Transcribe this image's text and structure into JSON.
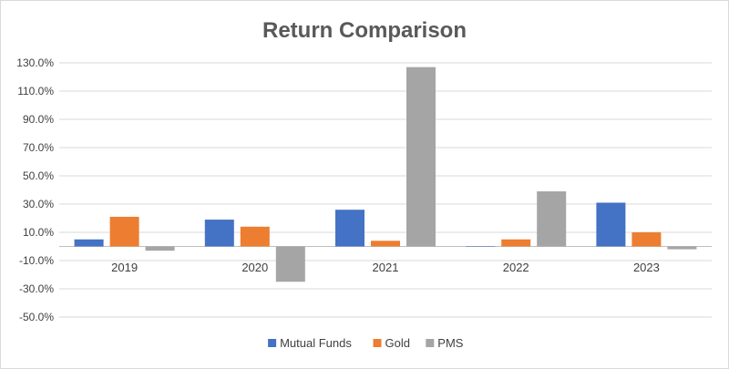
{
  "chart_data": {
    "type": "bar",
    "title": "Return Comparison",
    "xlabel": "",
    "ylabel": "",
    "categories": [
      "2019",
      "2020",
      "2021",
      "2022",
      "2023"
    ],
    "series": [
      {
        "name": "Mutual Funds",
        "color": "#4472C4",
        "values": [
          5.0,
          19.0,
          26.0,
          0.0,
          31.0
        ]
      },
      {
        "name": "Gold",
        "color": "#ED7D31",
        "values": [
          21.0,
          14.0,
          4.0,
          5.0,
          10.0
        ]
      },
      {
        "name": "PMS",
        "color": "#A5A5A5",
        "values": [
          -3.0,
          -25.0,
          127.0,
          39.0,
          -2.0
        ]
      }
    ],
    "ylim": [
      -50,
      130
    ],
    "yticks": [
      130,
      110,
      90,
      70,
      50,
      30,
      10,
      -10,
      -30,
      -50
    ],
    "ytick_labels": [
      "130.0%",
      "110.0%",
      "90.0%",
      "70.0%",
      "50.0%",
      "30.0%",
      "10.0%",
      "-10.0%",
      "-30.0%",
      "-50.0%"
    ],
    "grid": true,
    "legend_position": "bottom"
  }
}
